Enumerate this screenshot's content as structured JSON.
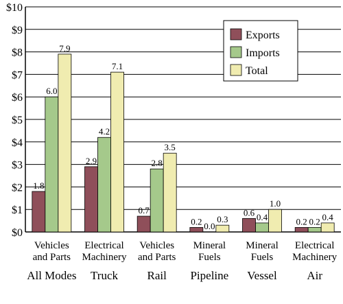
{
  "chart_data": {
    "type": "bar",
    "ylim": [
      0,
      10
    ],
    "y_ticks": [
      "$0",
      "$1",
      "$2",
      "$3",
      "$4",
      "$5",
      "$6",
      "$7",
      "$8",
      "$9",
      "$10"
    ],
    "grid": true,
    "legend_position": "top-right",
    "groups": [
      {
        "category_line1": "Vehicles",
        "category_line2": "and Parts",
        "mode": "All Modes"
      },
      {
        "category_line1": "Electrical",
        "category_line2": "Machinery",
        "mode": "Truck"
      },
      {
        "category_line1": "Vehicles",
        "category_line2": "and Parts",
        "mode": "Rail"
      },
      {
        "category_line1": "Mineral",
        "category_line2": "Fuels",
        "mode": "Pipeline"
      },
      {
        "category_line1": "Mineral",
        "category_line2": "Fuels",
        "mode": "Vessel"
      },
      {
        "category_line1": "Electrical",
        "category_line2": "Machinery",
        "mode": "Air"
      }
    ],
    "series": [
      {
        "name": "Exports",
        "color": "#8f4f5a",
        "values": [
          1.8,
          2.9,
          0.7,
          0.2,
          0.6,
          0.2
        ],
        "labels": [
          "1.8",
          "2.9",
          "0.7",
          "0.2",
          "0.6",
          "0.2"
        ]
      },
      {
        "name": "Imports",
        "color": "#a5c98b",
        "values": [
          6.0,
          4.2,
          2.8,
          0.0,
          0.4,
          0.2
        ],
        "labels": [
          "6.0",
          "4.2",
          "2.8",
          "0.0",
          "0.4",
          "0.2"
        ]
      },
      {
        "name": "Total",
        "color": "#f0ecb0",
        "values": [
          7.9,
          7.1,
          3.5,
          0.3,
          1.0,
          0.4
        ],
        "labels": [
          "7.9",
          "7.1",
          "3.5",
          "0.3",
          "1.0",
          "0.4"
        ]
      }
    ]
  }
}
